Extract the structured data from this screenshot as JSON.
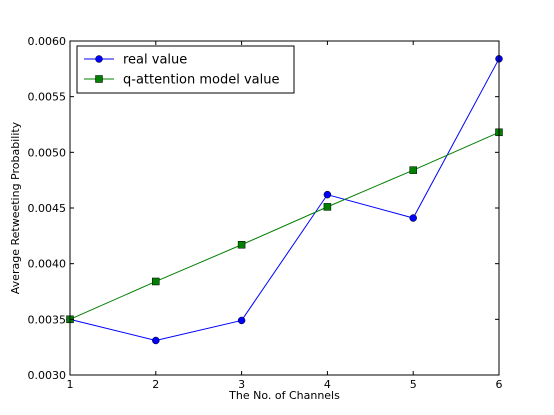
{
  "chart_data": {
    "type": "line",
    "title": "",
    "xlabel": "The No. of Channels",
    "ylabel": "Average Retweeting Probability",
    "x": [
      1,
      2,
      3,
      4,
      5,
      6
    ],
    "xlim": [
      1,
      6
    ],
    "ylim": [
      0.003,
      0.006
    ],
    "xticks": [
      "1",
      "2",
      "3",
      "4",
      "5",
      "6"
    ],
    "yticks": [
      "0.0030",
      "0.0035",
      "0.0040",
      "0.0045",
      "0.0050",
      "0.0055",
      "0.0060"
    ],
    "ytick_values": [
      0.003,
      0.0035,
      0.004,
      0.0045,
      0.005,
      0.0055,
      0.006
    ],
    "grid": false,
    "legend_position": "top-left",
    "series": [
      {
        "name": "real value",
        "values": [
          0.0035,
          0.00331,
          0.00349,
          0.00462,
          0.00441,
          0.00584
        ],
        "color": "#0000ff",
        "marker": "circle"
      },
      {
        "name": "q-attention model value",
        "values": [
          0.0035,
          0.00384,
          0.00417,
          0.00451,
          0.00484,
          0.00518
        ],
        "color": "#008000",
        "marker": "square"
      }
    ]
  }
}
